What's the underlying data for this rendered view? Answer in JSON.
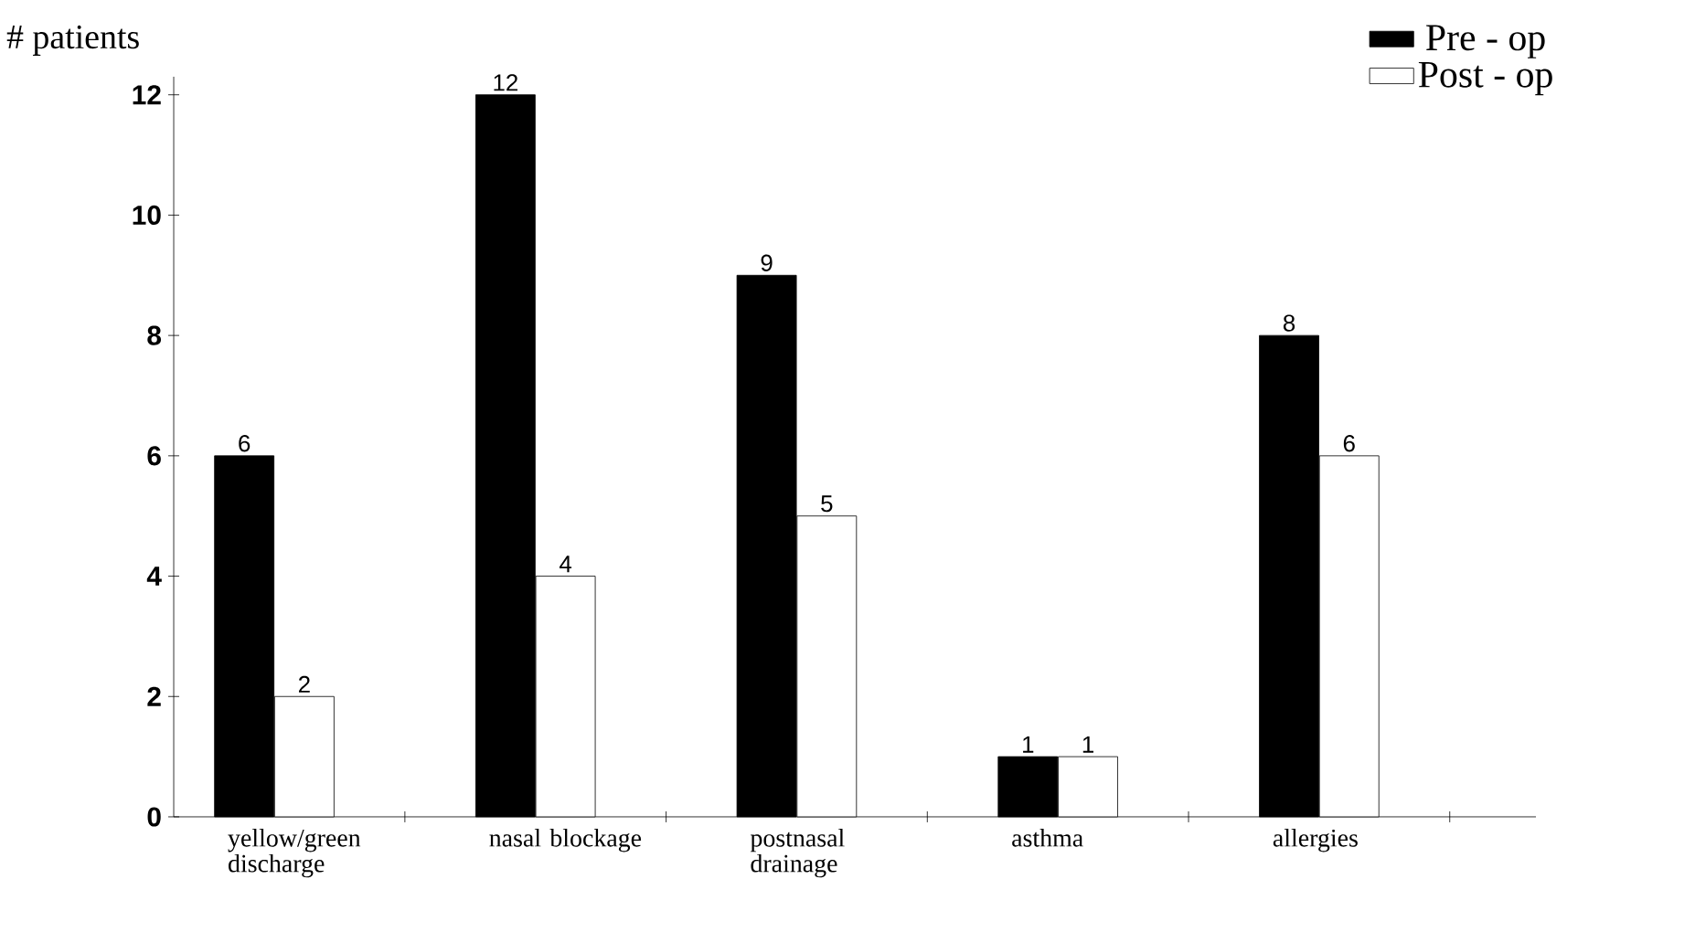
{
  "chart_data": {
    "type": "bar",
    "ylabel": "# patients",
    "categories": [
      "yellow/green discharge",
      "nasal blockage",
      "postnasal drainage",
      "asthma",
      "allergies"
    ],
    "series": [
      {
        "name": "Pre - op",
        "color": "#000000",
        "values": [
          6,
          12,
          9,
          1,
          8
        ]
      },
      {
        "name": "Post - op",
        "color": "#ffffff",
        "values": [
          2,
          4,
          5,
          1,
          6
        ]
      }
    ],
    "ylim": [
      0,
      12.3
    ],
    "yticks": [
      0,
      2,
      4,
      6,
      8,
      10,
      12
    ],
    "data_labels": true,
    "legend": "top right",
    "grid": false
  }
}
